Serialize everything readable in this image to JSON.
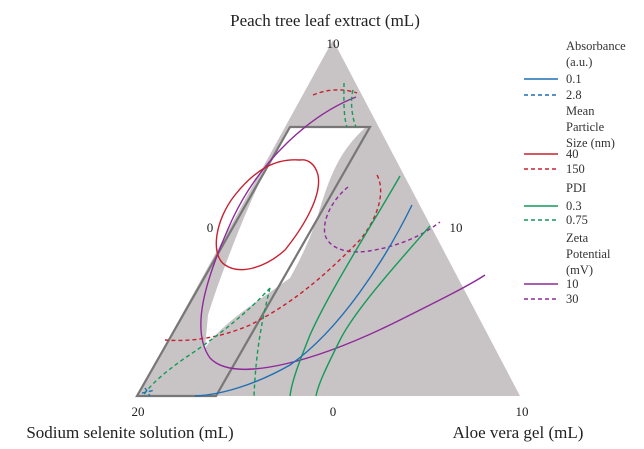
{
  "chart_data": {
    "type": "ternary-contour",
    "axes": {
      "top": {
        "label": "Peach tree leaf extract (mL)",
        "tick": "10"
      },
      "left": {
        "label": "Sodium selenite solution (mL)",
        "tick": "20"
      },
      "right": {
        "label": "Aloe vera gel (mL)",
        "tick": "10"
      },
      "ticks_mid": [
        "0",
        "10",
        "0"
      ]
    },
    "legend": [
      {
        "title": "Absorbance (a.u.)",
        "title_lines": [
          "Absorbance",
          "(a.u.)"
        ],
        "items": [
          {
            "label": "0.1",
            "style": "solid"
          },
          {
            "label": "2.8",
            "style": "dashed"
          }
        ],
        "color": "#1f6fb4"
      },
      {
        "title": "Mean Particle Size (nm)",
        "title_lines": [
          "Mean",
          "Particle",
          "Size (nm)"
        ],
        "items": [
          {
            "label": "40",
            "style": "solid"
          },
          {
            "label": "150",
            "style": "dashed"
          }
        ],
        "color": "#c8202f"
      },
      {
        "title": "PDI",
        "title_lines": [
          "PDI"
        ],
        "items": [
          {
            "label": "0.3",
            "style": "solid"
          },
          {
            "label": "0.75",
            "style": "dashed"
          }
        ],
        "color": "#139a5a"
      },
      {
        "title": "Zeta Potential (mV)",
        "title_lines": [
          "Zeta",
          "Potential",
          "(mV)"
        ],
        "items": [
          {
            "label": "10",
            "style": "solid"
          },
          {
            "label": "30",
            "style": "dashed"
          }
        ],
        "color": "#8e2a9a"
      }
    ],
    "colors": {
      "infeasible_fill": "#c8c3c4",
      "feasible_fill": "#ffffff",
      "boundary": "#777777"
    }
  }
}
